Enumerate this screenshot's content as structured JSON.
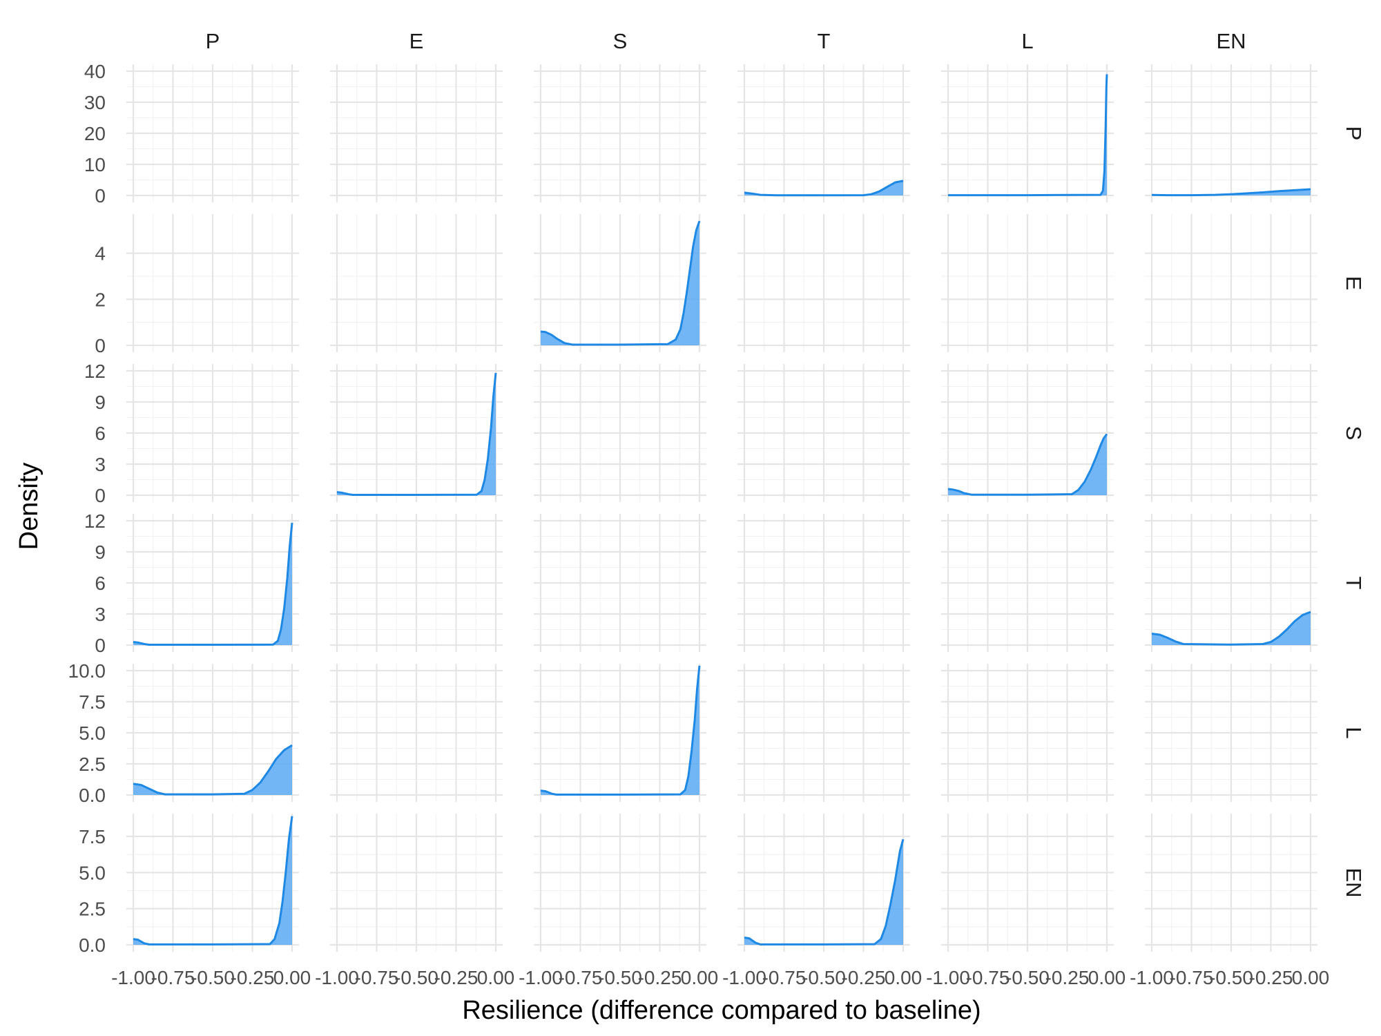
{
  "chart_data": {
    "type": "area",
    "xlabel": "Resilience (difference compared to baseline)",
    "ylabel": "Density",
    "xlim": [
      -1.0,
      0.0
    ],
    "x_ticks": [
      -1.0,
      -0.75,
      -0.5,
      -0.25,
      0.0
    ],
    "x_tick_labels": [
      "-1.00",
      "-0.75",
      "-0.50",
      "-0.25",
      "0.00"
    ],
    "col_labels": [
      "P",
      "E",
      "S",
      "T",
      "L",
      "EN"
    ],
    "row_labels": [
      "P",
      "E",
      "S",
      "T",
      "L",
      "EN"
    ],
    "grid": true,
    "fill_color": "#5aa9f5",
    "line_color": "#1e88e5",
    "rows": [
      {
        "label": "P",
        "ylim": [
          0,
          40
        ],
        "y_ticks": [
          0,
          10,
          20,
          30,
          40
        ],
        "y_tick_labels": [
          "0",
          "10",
          "20",
          "30",
          "40"
        ]
      },
      {
        "label": "E",
        "ylim": [
          0,
          5.4
        ],
        "y_ticks": [
          0,
          2,
          4
        ],
        "y_tick_labels": [
          "0",
          "2",
          "4"
        ]
      },
      {
        "label": "S",
        "ylim": [
          0,
          12
        ],
        "y_ticks": [
          0,
          3,
          6,
          9,
          12
        ],
        "y_tick_labels": [
          "0",
          "3",
          "6",
          "9",
          "12"
        ]
      },
      {
        "label": "T",
        "ylim": [
          0,
          12
        ],
        "y_ticks": [
          0,
          3,
          6,
          9,
          12
        ],
        "y_tick_labels": [
          "0",
          "3",
          "6",
          "9",
          "12"
        ]
      },
      {
        "label": "L",
        "ylim": [
          0,
          10
        ],
        "y_ticks": [
          0,
          2.5,
          5,
          7.5,
          10
        ],
        "y_tick_labels": [
          "0.0",
          "2.5",
          "5.0",
          "7.5",
          "10.0"
        ]
      },
      {
        "label": "EN",
        "ylim": [
          0,
          8.6
        ],
        "y_ticks": [
          0,
          2.5,
          5,
          7.5
        ],
        "y_tick_labels": [
          "0.0",
          "2.5",
          "5.0",
          "7.5"
        ]
      }
    ],
    "panels": [
      {
        "row": 0,
        "col": 3,
        "x": [
          -1.0,
          -0.95,
          -0.9,
          -0.8,
          -0.5,
          -0.25,
          -0.2,
          -0.15,
          -0.1,
          -0.05,
          0.0
        ],
        "y": [
          0.9,
          0.6,
          0.2,
          0.05,
          0.05,
          0.1,
          0.4,
          1.3,
          2.8,
          4.2,
          4.7
        ]
      },
      {
        "row": 0,
        "col": 4,
        "x": [
          -1.0,
          -0.5,
          -0.04,
          -0.025,
          -0.015,
          -0.008,
          -0.003,
          0.0
        ],
        "y": [
          0.1,
          0.1,
          0.2,
          1.5,
          8,
          22,
          35,
          39
        ]
      },
      {
        "row": 0,
        "col": 5,
        "x": [
          -1.0,
          -0.9,
          -0.75,
          -0.6,
          -0.5,
          -0.4,
          -0.3,
          -0.2,
          -0.1,
          0.0
        ],
        "y": [
          0.15,
          0.1,
          0.1,
          0.2,
          0.4,
          0.7,
          1.0,
          1.4,
          1.7,
          2.0
        ]
      },
      {
        "row": 1,
        "col": 2,
        "x": [
          -1.0,
          -0.97,
          -0.93,
          -0.9,
          -0.85,
          -0.8,
          -0.5,
          -0.2,
          -0.15,
          -0.12,
          -0.1,
          -0.08,
          -0.06,
          -0.04,
          -0.02,
          0.0
        ],
        "y": [
          0.6,
          0.58,
          0.45,
          0.3,
          0.1,
          0.03,
          0.03,
          0.05,
          0.25,
          0.7,
          1.4,
          2.3,
          3.3,
          4.3,
          5.0,
          5.4
        ]
      },
      {
        "row": 2,
        "col": 1,
        "x": [
          -1.0,
          -0.97,
          -0.93,
          -0.9,
          -0.5,
          -0.12,
          -0.09,
          -0.07,
          -0.05,
          -0.03,
          -0.015,
          0.0
        ],
        "y": [
          0.3,
          0.25,
          0.1,
          0.03,
          0.03,
          0.05,
          0.4,
          1.5,
          3.5,
          6.5,
          9.5,
          11.8
        ]
      },
      {
        "row": 2,
        "col": 4,
        "x": [
          -1.0,
          -0.97,
          -0.93,
          -0.9,
          -0.85,
          -0.5,
          -0.22,
          -0.18,
          -0.14,
          -0.1,
          -0.07,
          -0.04,
          -0.02,
          0.0
        ],
        "y": [
          0.6,
          0.55,
          0.4,
          0.2,
          0.05,
          0.05,
          0.1,
          0.5,
          1.3,
          2.5,
          3.6,
          4.8,
          5.5,
          5.9
        ]
      },
      {
        "row": 3,
        "col": 0,
        "x": [
          -1.0,
          -0.97,
          -0.93,
          -0.9,
          -0.5,
          -0.12,
          -0.09,
          -0.07,
          -0.05,
          -0.03,
          -0.015,
          0.0
        ],
        "y": [
          0.3,
          0.25,
          0.1,
          0.03,
          0.03,
          0.05,
          0.4,
          1.5,
          3.5,
          6.5,
          9.5,
          11.8
        ]
      },
      {
        "row": 3,
        "col": 5,
        "x": [
          -1.0,
          -0.95,
          -0.9,
          -0.85,
          -0.8,
          -0.5,
          -0.3,
          -0.25,
          -0.2,
          -0.15,
          -0.1,
          -0.05,
          0.0
        ],
        "y": [
          1.1,
          1.0,
          0.7,
          0.35,
          0.1,
          0.05,
          0.1,
          0.3,
          0.8,
          1.5,
          2.3,
          2.9,
          3.2
        ]
      },
      {
        "row": 4,
        "col": 0,
        "x": [
          -1.0,
          -0.95,
          -0.9,
          -0.85,
          -0.8,
          -0.5,
          -0.3,
          -0.25,
          -0.2,
          -0.15,
          -0.1,
          -0.05,
          0.0
        ],
        "y": [
          0.9,
          0.8,
          0.5,
          0.2,
          0.05,
          0.05,
          0.1,
          0.4,
          1.0,
          1.9,
          2.9,
          3.6,
          4.0
        ]
      },
      {
        "row": 4,
        "col": 2,
        "x": [
          -1.0,
          -0.97,
          -0.93,
          -0.9,
          -0.5,
          -0.12,
          -0.09,
          -0.07,
          -0.05,
          -0.03,
          -0.015,
          0.0
        ],
        "y": [
          0.35,
          0.3,
          0.1,
          0.03,
          0.03,
          0.05,
          0.4,
          1.5,
          3.5,
          6.0,
          8.5,
          10.4
        ]
      },
      {
        "row": 5,
        "col": 0,
        "x": [
          -1.0,
          -0.97,
          -0.93,
          -0.9,
          -0.5,
          -0.14,
          -0.11,
          -0.08,
          -0.06,
          -0.04,
          -0.02,
          0.0
        ],
        "y": [
          0.4,
          0.35,
          0.1,
          0.03,
          0.03,
          0.05,
          0.4,
          1.5,
          3.0,
          5.0,
          7.3,
          8.9
        ]
      },
      {
        "row": 5,
        "col": 3,
        "x": [
          -1.0,
          -0.97,
          -0.93,
          -0.9,
          -0.5,
          -0.18,
          -0.14,
          -0.11,
          -0.08,
          -0.05,
          -0.02,
          0.0
        ],
        "y": [
          0.5,
          0.45,
          0.15,
          0.03,
          0.03,
          0.05,
          0.4,
          1.3,
          2.8,
          4.5,
          6.5,
          7.3
        ]
      }
    ]
  }
}
